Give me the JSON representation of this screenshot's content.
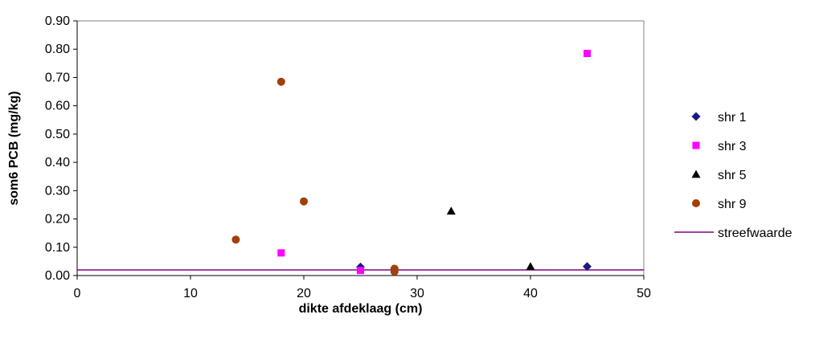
{
  "chart_data": {
    "type": "scatter",
    "xlabel": "dikte afdeklaag (cm)",
    "ylabel": "som6 PCB (mg/kg)",
    "xlim": [
      0,
      50
    ],
    "ylim": [
      0,
      0.9
    ],
    "xticks": [
      0,
      10,
      20,
      30,
      40,
      50
    ],
    "xtick_labels": [
      "0",
      "10",
      "20",
      "30",
      "40",
      "50"
    ],
    "yticks": [
      0,
      0.1,
      0.2,
      0.3,
      0.4,
      0.5,
      0.6,
      0.7,
      0.8,
      0.9
    ],
    "ytick_labels": [
      "0.00",
      "0.10",
      "0.20",
      "0.30",
      "0.40",
      "0.50",
      "0.60",
      "0.70",
      "0.80",
      "0.90"
    ],
    "grid": false,
    "legend_position": "right",
    "series": [
      {
        "name": "shr 1",
        "marker": "diamond",
        "color": "#1a1a80",
        "points": [
          [
            25,
            0.03
          ],
          [
            45,
            0.032
          ]
        ]
      },
      {
        "name": "shr 3",
        "marker": "square",
        "color": "#ff00ff",
        "points": [
          [
            18,
            0.08
          ],
          [
            25,
            0.018
          ],
          [
            45,
            0.785
          ]
        ]
      },
      {
        "name": "shr 5",
        "marker": "triangle",
        "color": "#000000",
        "points": [
          [
            33,
            0.228
          ],
          [
            40,
            0.032
          ]
        ]
      },
      {
        "name": "shr 9",
        "marker": "circle",
        "color": "#a0400a",
        "points": [
          [
            14,
            0.127
          ],
          [
            18,
            0.685
          ],
          [
            20,
            0.262
          ],
          [
            28,
            0.024
          ],
          [
            28,
            0.014
          ]
        ]
      }
    ],
    "reference_line": {
      "name": "streefwaarde",
      "value": 0.02,
      "color": "#800080"
    }
  }
}
